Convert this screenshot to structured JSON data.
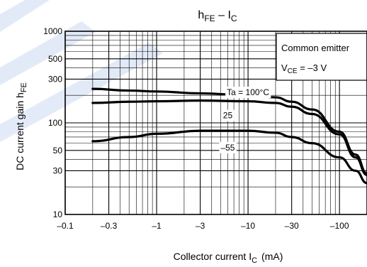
{
  "chart_data": {
    "type": "line",
    "title_main": "h",
    "title_sub1": "FE",
    "title_sep": " – I",
    "title_sub2": "C",
    "xlabel_main": "Collector current   I",
    "xlabel_sub": "C",
    "xlabel_unit": "(mA)",
    "ylabel_main": "DC current gain   h",
    "ylabel_sub": "FE",
    "x_scale": "log",
    "y_scale": "log",
    "x_axis_direction": "negative current, magnitude increases to the right",
    "xlim": [
      -0.1,
      -200
    ],
    "ylim": [
      10,
      1000
    ],
    "grid": true,
    "x_ticks": [
      {
        "value": -0.1,
        "label": "–0.1"
      },
      {
        "value": -0.3,
        "label": "–0.3"
      },
      {
        "value": -1,
        "label": "–1"
      },
      {
        "value": -3,
        "label": "–3"
      },
      {
        "value": -10,
        "label": "–10"
      },
      {
        "value": -30,
        "label": "–30"
      },
      {
        "value": -100,
        "label": "–100"
      }
    ],
    "y_ticks": [
      {
        "value": 1000,
        "label": "1000"
      },
      {
        "value": 500,
        "label": "500"
      },
      {
        "value": 300,
        "label": "300"
      },
      {
        "value": 100,
        "label": "100"
      },
      {
        "value": 50,
        "label": "50"
      },
      {
        "value": 30,
        "label": "30"
      },
      {
        "value": 10,
        "label": "10"
      }
    ],
    "legend": {
      "placement": "top-right",
      "line1": "Common emitter",
      "line2_main": "V",
      "line2_sub": "CE",
      "line2_rest": " = –3 V"
    },
    "series": [
      {
        "name": "Ta = 100°C",
        "x": [
          -0.2,
          -0.5,
          -1,
          -3,
          -10,
          -20,
          -30,
          -50,
          -100,
          -150,
          -200
        ],
        "y": [
          235,
          225,
          220,
          210,
          200,
          190,
          170,
          140,
          80,
          45,
          28
        ]
      },
      {
        "name": "25",
        "x": [
          -0.2,
          -0.5,
          -1,
          -3,
          -10,
          -20,
          -30,
          -50,
          -100,
          -150,
          -200
        ],
        "y": [
          165,
          170,
          172,
          175,
          172,
          165,
          150,
          125,
          75,
          42,
          27
        ]
      },
      {
        "name": "–55",
        "x": [
          -0.2,
          -0.5,
          -1,
          -3,
          -10,
          -20,
          -30,
          -50,
          -100,
          -150,
          -200
        ],
        "y": [
          63,
          70,
          76,
          82,
          82,
          78,
          70,
          60,
          42,
          30,
          22
        ]
      }
    ]
  }
}
